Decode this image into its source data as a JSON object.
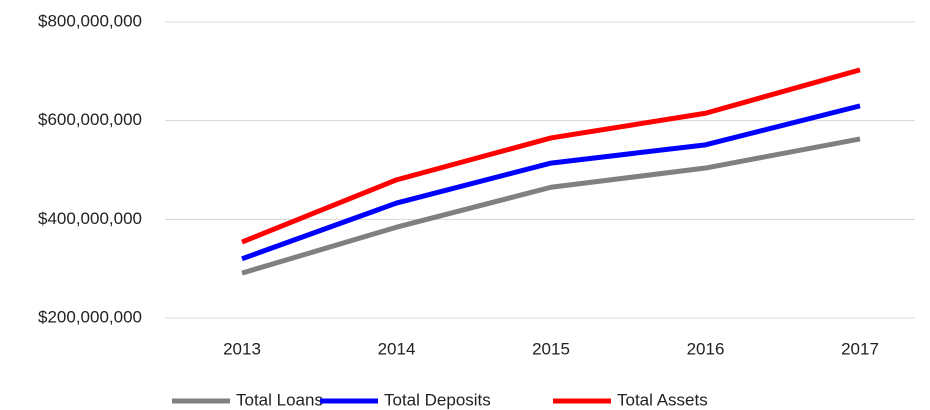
{
  "chart_data": {
    "type": "line",
    "categories": [
      "2013",
      "2014",
      "2015",
      "2016",
      "2017"
    ],
    "series": [
      {
        "name": "Total Loans",
        "color": "#808080",
        "values": [
          291000000,
          384000000,
          465000000,
          504000000,
          563000000
        ]
      },
      {
        "name": "Total Deposits",
        "color": "#0000ff",
        "values": [
          320000000,
          433000000,
          514000000,
          551000000,
          630000000
        ]
      },
      {
        "name": "Total Assets",
        "color": "#ff0000",
        "values": [
          354000000,
          480000000,
          565000000,
          615000000,
          703000000
        ]
      }
    ],
    "ylim": [
      200000000,
      800000000
    ],
    "yticks": [
      {
        "value": 200000000,
        "label": "$200,000,000"
      },
      {
        "value": 400000000,
        "label": "$400,000,000"
      },
      {
        "value": 600000000,
        "label": "$600,000,000"
      },
      {
        "value": 800000000,
        "label": "$800,000,000"
      }
    ],
    "grid": true,
    "legend": "bottom"
  }
}
